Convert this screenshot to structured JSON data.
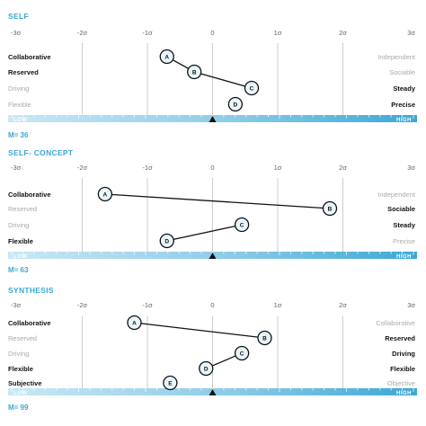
{
  "colors": {
    "accent": "#3ba7d4",
    "bar_light": "#c9e8f5",
    "bar_mid": "#8ccbe7",
    "grid": "#cccccc",
    "tick_label": "#666666",
    "label_bold": "#111111",
    "label_faded": "#aaaaaa",
    "marker_fill": "#e9f6fc"
  },
  "chart_data": [
    {
      "type": "scatter",
      "title": "SELF",
      "xlim": [
        -3,
        3
      ],
      "x_ticks": [
        "-3σ",
        "-2σ",
        "-1σ",
        "0",
        "1σ",
        "2σ",
        "3σ"
      ],
      "left_labels": [
        {
          "text": "Collaborative",
          "bold": true
        },
        {
          "text": "Reserved",
          "bold": true
        },
        {
          "text": "Driving",
          "bold": false
        },
        {
          "text": "Flexible",
          "bold": false
        }
      ],
      "right_labels": [
        {
          "text": "Independent",
          "bold": false
        },
        {
          "text": "Sociable",
          "bold": false
        },
        {
          "text": "Steady",
          "bold": true
        },
        {
          "text": "Precise",
          "bold": true
        }
      ],
      "points": [
        {
          "label": "A",
          "x": -0.7,
          "row": 0
        },
        {
          "label": "B",
          "x": -0.28,
          "row": 1
        },
        {
          "label": "C",
          "x": 0.6,
          "row": 2
        },
        {
          "label": "D",
          "x": 0.35,
          "row": 3
        }
      ],
      "connections": [
        [
          "A",
          "B"
        ],
        [
          "B",
          "C"
        ]
      ],
      "scale": {
        "low": "LOW",
        "high": "HIGH"
      },
      "m_label": "M= 36",
      "m_value": 36
    },
    {
      "type": "scatter",
      "title": "SELF- CONCEPT",
      "xlim": [
        -3,
        3
      ],
      "x_ticks": [
        "-3σ",
        "-2σ",
        "-1σ",
        "0",
        "1σ",
        "2σ",
        "3σ"
      ],
      "left_labels": [
        {
          "text": "Collaborative",
          "bold": true
        },
        {
          "text": "Reserved",
          "bold": false
        },
        {
          "text": "Driving",
          "bold": false
        },
        {
          "text": "Flexible",
          "bold": true
        }
      ],
      "right_labels": [
        {
          "text": "Independent",
          "bold": false
        },
        {
          "text": "Sociable",
          "bold": true
        },
        {
          "text": "Steady",
          "bold": true
        },
        {
          "text": "Precise",
          "bold": false
        }
      ],
      "points": [
        {
          "label": "A",
          "x": -1.65,
          "row": 0
        },
        {
          "label": "B",
          "x": 1.8,
          "row": 1
        },
        {
          "label": "C",
          "x": 0.45,
          "row": 2
        },
        {
          "label": "D",
          "x": -0.7,
          "row": 3
        }
      ],
      "connections": [
        [
          "A",
          "B"
        ],
        [
          "C",
          "D"
        ]
      ],
      "scale": {
        "low": "LOW",
        "high": "HIGH"
      },
      "m_label": "M= 63",
      "m_value": 63
    },
    {
      "type": "scatter",
      "title": "SYNTHESIS",
      "xlim": [
        -3,
        3
      ],
      "x_ticks": [
        "-3σ",
        "-2σ",
        "-1σ",
        "0",
        "1σ",
        "2σ",
        "3σ"
      ],
      "left_labels": [
        {
          "text": "Collaborative",
          "bold": true
        },
        {
          "text": "Reserved",
          "bold": false
        },
        {
          "text": "Driving",
          "bold": false
        },
        {
          "text": "Flexible",
          "bold": true
        },
        {
          "text": "Subjective",
          "bold": true
        }
      ],
      "right_labels": [
        {
          "text": "Collaborative",
          "bold": false
        },
        {
          "text": "Reserved",
          "bold": true
        },
        {
          "text": "Driving",
          "bold": true
        },
        {
          "text": "Flexible",
          "bold": true
        },
        {
          "text": "Objective",
          "bold": false
        }
      ],
      "points": [
        {
          "label": "A",
          "x": -1.2,
          "row": 0
        },
        {
          "label": "B",
          "x": 0.8,
          "row": 1
        },
        {
          "label": "C",
          "x": 0.45,
          "row": 2
        },
        {
          "label": "D",
          "x": -0.1,
          "row": 3
        },
        {
          "label": "E",
          "x": -0.65,
          "row": 4
        }
      ],
      "connections": [
        [
          "A",
          "B"
        ],
        [
          "C",
          "D"
        ]
      ],
      "scale": {
        "low": "LOW",
        "high": "HIGH"
      },
      "m_label": "M= 99",
      "m_value": 99
    }
  ]
}
